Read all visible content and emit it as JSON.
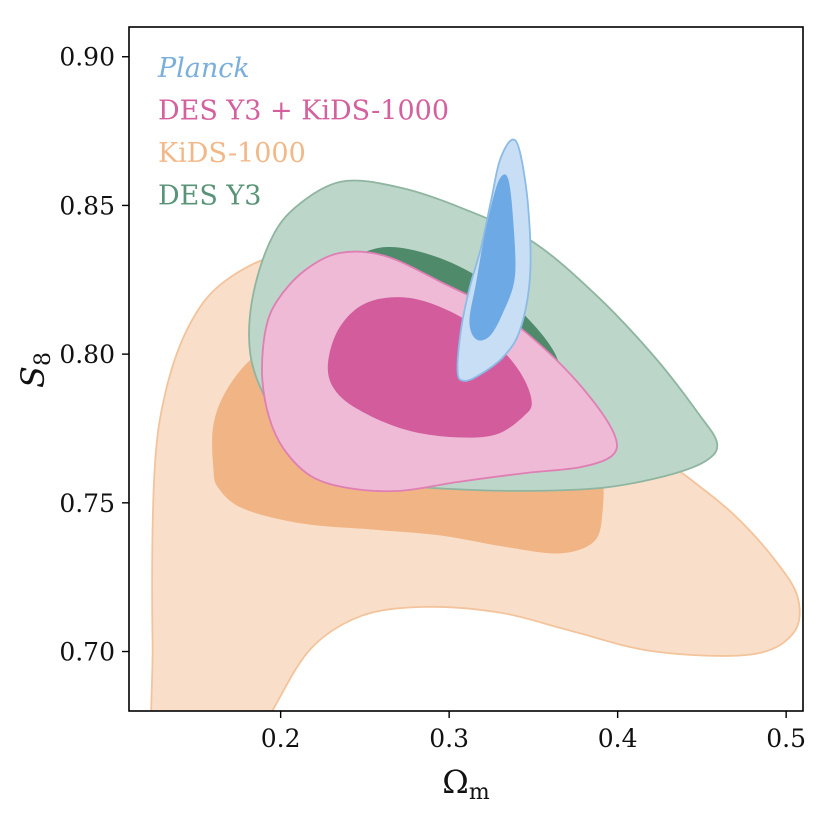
{
  "chart_data": {
    "type": "contour",
    "xlabel": "Ω",
    "xlabel_sub": "m",
    "ylabel": "S",
    "ylabel_sub": "8",
    "xlim": [
      0.11,
      0.51
    ],
    "ylim": [
      0.68,
      0.91
    ],
    "xticks": [
      0.2,
      0.3,
      0.4,
      0.5
    ],
    "xtick_labels": [
      "0.2",
      "0.3",
      "0.4",
      "0.5"
    ],
    "yticks": [
      0.7,
      0.75,
      0.8,
      0.85,
      0.9
    ],
    "ytick_labels": [
      "0.70",
      "0.75",
      "0.80",
      "0.85",
      "0.90"
    ],
    "legend_position": "top-left",
    "legend": [
      {
        "label": "Planck",
        "color": "#7aaedb",
        "italic": true
      },
      {
        "label": "DES Y3 + KiDS-1000",
        "color": "#d4609e",
        "italic": false
      },
      {
        "label": "KiDS-1000",
        "color": "#f3b887",
        "italic": false
      },
      {
        "label": "DES Y3",
        "color": "#5a9478",
        "italic": false
      }
    ],
    "series": [
      {
        "name": "KiDS-1000",
        "contours": [
          {
            "level": "outer",
            "fill": "#f9dfca",
            "stroke": "#f3c49c",
            "points": [
              [
                0.128,
                0.658
              ],
              [
                0.124,
                0.703
              ],
              [
                0.125,
                0.759
              ],
              [
                0.132,
                0.788
              ],
              [
                0.147,
                0.811
              ],
              [
                0.168,
                0.825
              ],
              [
                0.204,
                0.834
              ],
              [
                0.247,
                0.831
              ],
              [
                0.297,
                0.819
              ],
              [
                0.343,
                0.806
              ],
              [
                0.372,
                0.795
              ],
              [
                0.398,
                0.782
              ],
              [
                0.42,
                0.768
              ],
              [
                0.443,
                0.758
              ],
              [
                0.469,
                0.746
              ],
              [
                0.493,
                0.731
              ],
              [
                0.507,
                0.718
              ],
              [
                0.504,
                0.706
              ],
              [
                0.479,
                0.699
              ],
              [
                0.422,
                0.7
              ],
              [
                0.372,
                0.707
              ],
              [
                0.331,
                0.713
              ],
              [
                0.286,
                0.715
              ],
              [
                0.248,
                0.712
              ],
              [
                0.218,
                0.701
              ],
              [
                0.195,
                0.68
              ],
              [
                0.174,
                0.658
              ]
            ]
          },
          {
            "level": "inner",
            "fill": "#f1b585",
            "stroke": "none",
            "points": [
              [
                0.16,
                0.762
              ],
              [
                0.16,
                0.776
              ],
              [
                0.168,
                0.788
              ],
              [
                0.184,
                0.799
              ],
              [
                0.208,
                0.806
              ],
              [
                0.245,
                0.808
              ],
              [
                0.286,
                0.805
              ],
              [
                0.325,
                0.797
              ],
              [
                0.355,
                0.786
              ],
              [
                0.376,
                0.775
              ],
              [
                0.39,
                0.761
              ],
              [
                0.391,
                0.747
              ],
              [
                0.386,
                0.737
              ],
              [
                0.366,
                0.733
              ],
              [
                0.335,
                0.735
              ],
              [
                0.295,
                0.739
              ],
              [
                0.255,
                0.741
              ],
              [
                0.213,
                0.743
              ],
              [
                0.178,
                0.748
              ],
              [
                0.163,
                0.755
              ]
            ]
          }
        ]
      },
      {
        "name": "DES Y3",
        "contours": [
          {
            "level": "outer",
            "fill": "#bcd6c9",
            "stroke": "#8fb5a1",
            "points": [
              [
                0.183,
                0.818
              ],
              [
                0.193,
                0.837
              ],
              [
                0.208,
                0.849
              ],
              [
                0.236,
                0.858
              ],
              [
                0.271,
                0.856
              ],
              [
                0.308,
                0.849
              ],
              [
                0.349,
                0.838
              ],
              [
                0.387,
                0.82
              ],
              [
                0.422,
                0.799
              ],
              [
                0.448,
                0.78
              ],
              [
                0.459,
                0.77
              ],
              [
                0.452,
                0.764
              ],
              [
                0.428,
                0.759
              ],
              [
                0.39,
                0.755
              ],
              [
                0.34,
                0.754
              ],
              [
                0.29,
                0.755
              ],
              [
                0.252,
                0.757
              ],
              [
                0.228,
                0.762
              ],
              [
                0.207,
                0.77
              ],
              [
                0.191,
                0.785
              ],
              [
                0.182,
                0.8
              ]
            ]
          },
          {
            "level": "inner",
            "fill": "#4f8a6b",
            "stroke": "none",
            "points": [
              [
                0.218,
                0.823
              ],
              [
                0.238,
                0.831
              ],
              [
                0.262,
                0.836
              ],
              [
                0.291,
                0.833
              ],
              [
                0.32,
                0.825
              ],
              [
                0.345,
                0.813
              ],
              [
                0.363,
                0.8
              ],
              [
                0.365,
                0.79
              ],
              [
                0.35,
                0.784
              ],
              [
                0.32,
                0.783
              ],
              [
                0.285,
                0.786
              ],
              [
                0.252,
                0.791
              ],
              [
                0.228,
                0.799
              ],
              [
                0.216,
                0.81
              ]
            ]
          }
        ]
      },
      {
        "name": "DES Y3 + KiDS-1000",
        "contours": [
          {
            "level": "outer",
            "fill": "#eebad6",
            "stroke": "#df7fb3",
            "points": [
              [
                0.189,
                0.793
              ],
              [
                0.191,
                0.808
              ],
              [
                0.198,
                0.818
              ],
              [
                0.214,
                0.828
              ],
              [
                0.235,
                0.834
              ],
              [
                0.262,
                0.833
              ],
              [
                0.296,
                0.824
              ],
              [
                0.33,
                0.814
              ],
              [
                0.36,
                0.8
              ],
              [
                0.383,
                0.786
              ],
              [
                0.398,
                0.773
              ],
              [
                0.397,
                0.766
              ],
              [
                0.378,
                0.762
              ],
              [
                0.345,
                0.76
              ],
              [
                0.305,
                0.757
              ],
              [
                0.27,
                0.754
              ],
              [
                0.24,
                0.755
              ],
              [
                0.218,
                0.759
              ],
              [
                0.202,
                0.768
              ],
              [
                0.193,
                0.779
              ]
            ]
          },
          {
            "level": "inner",
            "fill": "#d35c9d",
            "stroke": "none",
            "points": [
              [
                0.228,
                0.795
              ],
              [
                0.234,
                0.808
              ],
              [
                0.25,
                0.817
              ],
              [
                0.275,
                0.819
              ],
              [
                0.302,
                0.814
              ],
              [
                0.325,
                0.805
              ],
              [
                0.342,
                0.794
              ],
              [
                0.349,
                0.784
              ],
              [
                0.344,
                0.779
              ],
              [
                0.328,
                0.773
              ],
              [
                0.305,
                0.772
              ],
              [
                0.278,
                0.774
              ],
              [
                0.254,
                0.779
              ],
              [
                0.235,
                0.786
              ]
            ]
          }
        ]
      },
      {
        "name": "Planck",
        "contours": [
          {
            "level": "outer",
            "fill": "#c8def4",
            "stroke": "#8cbbe6",
            "points": [
              [
                0.305,
                0.794
              ],
              [
                0.307,
                0.808
              ],
              [
                0.312,
                0.822
              ],
              [
                0.319,
                0.836
              ],
              [
                0.325,
                0.852
              ],
              [
                0.33,
                0.865
              ],
              [
                0.337,
                0.872
              ],
              [
                0.342,
                0.868
              ],
              [
                0.347,
                0.849
              ],
              [
                0.348,
                0.826
              ],
              [
                0.342,
                0.808
              ],
              [
                0.332,
                0.799
              ],
              [
                0.318,
                0.793
              ],
              [
                0.309,
                0.791
              ]
            ]
          },
          {
            "level": "inner",
            "fill": "#6daae5",
            "stroke": "none",
            "points": [
              [
                0.312,
                0.811
              ],
              [
                0.316,
                0.824
              ],
              [
                0.32,
                0.837
              ],
              [
                0.325,
                0.85
              ],
              [
                0.33,
                0.859
              ],
              [
                0.335,
                0.859
              ],
              [
                0.338,
                0.845
              ],
              [
                0.339,
                0.826
              ],
              [
                0.332,
                0.814
              ],
              [
                0.324,
                0.806
              ],
              [
                0.316,
                0.805
              ]
            ]
          }
        ]
      }
    ]
  }
}
